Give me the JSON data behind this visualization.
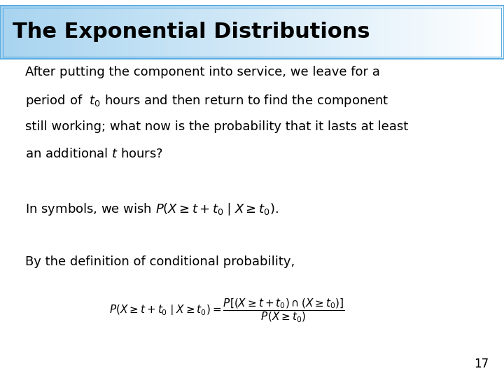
{
  "title": "The Exponential Distributions",
  "title_fontsize": 22,
  "title_bg_color_left": "#a8d4f0",
  "title_bg_color_right": "#ffffff",
  "title_border_color": "#5dade2",
  "body_bg_color": "#ffffff",
  "text_color": "#000000",
  "p1_line1": "After putting the component into service, we leave for a",
  "p1_line2": "period of  $t_0$ hours and then return to find the component",
  "p1_line3": "still working; what now is the probability that it lasts at least",
  "p1_line4": "an additional $t$ hours?",
  "paragraph2": "In symbols, we wish $P(X \\geq t + t_0 \\mid X \\geq t_0)$.",
  "paragraph3": "By the definition of conditional probability,",
  "formula": "$P(X \\geq t + t_0 \\mid X \\geq t_0) = \\dfrac{P[(X \\geq t + t_0) \\cap (X \\geq t_0)]}{P(X \\geq t_0)}$",
  "page_number": "17",
  "body_fontsize": 13,
  "formula_fontsize": 11,
  "page_fontsize": 12
}
